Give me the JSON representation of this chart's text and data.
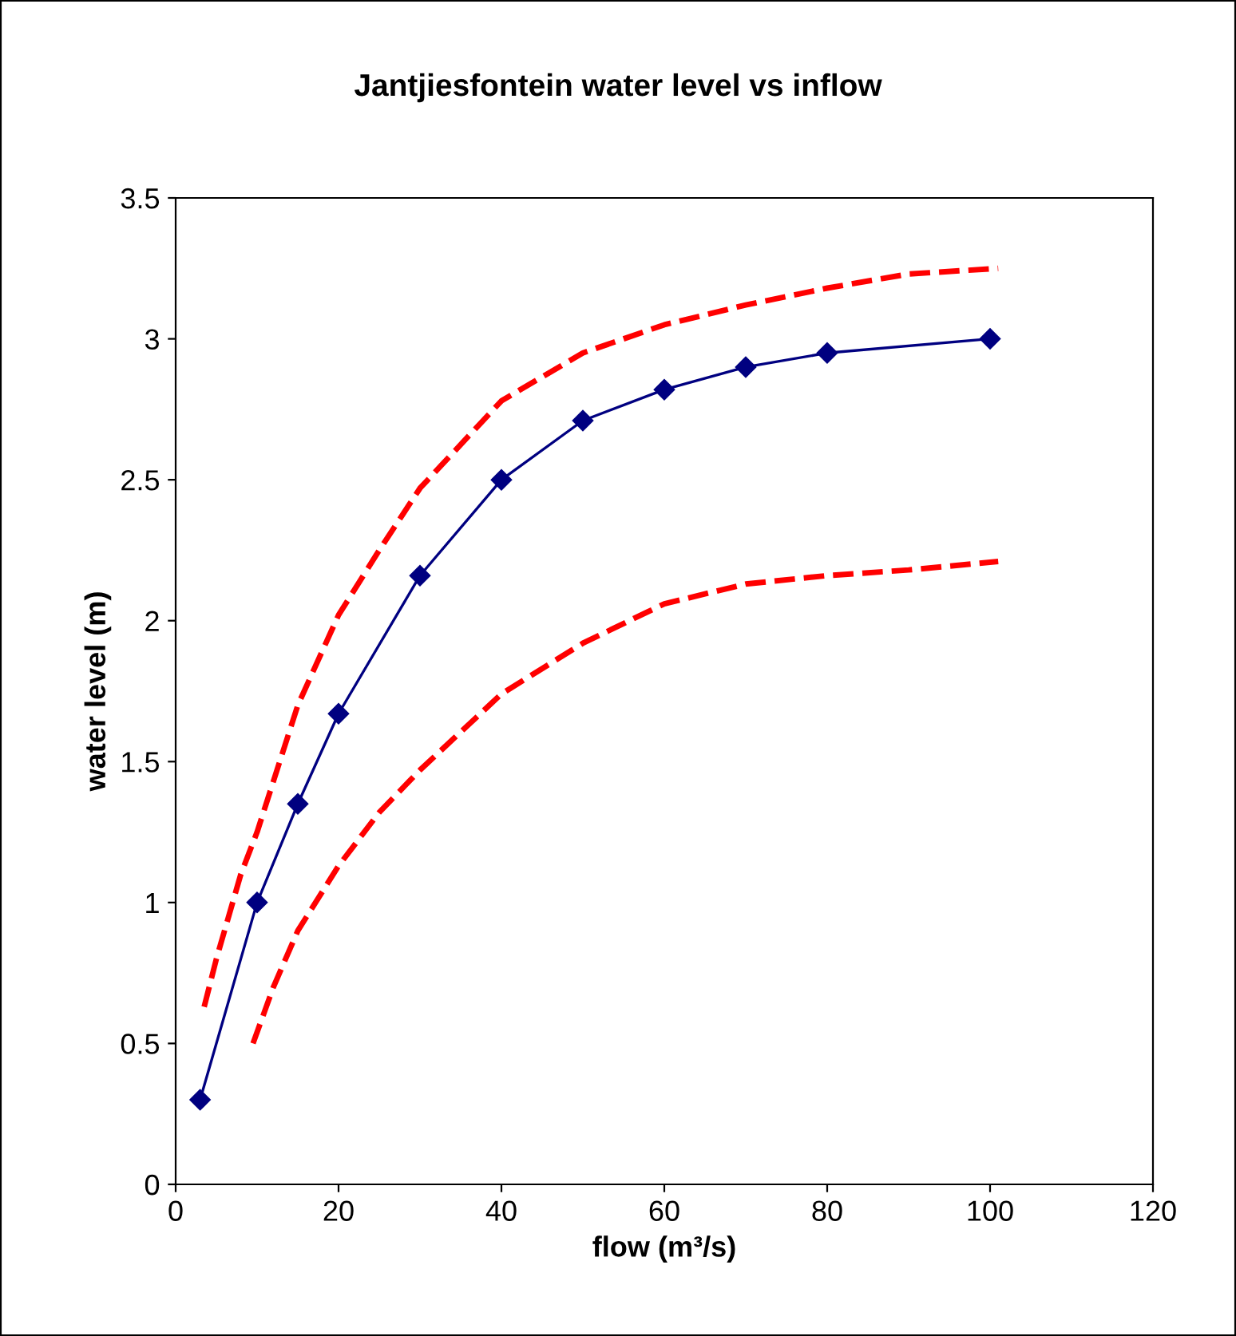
{
  "chart_data": {
    "type": "line",
    "title": "Jantjiesfontein water level vs inflow",
    "xlabel": "flow (m³/s)",
    "ylabel": "water level (m)",
    "xlim": [
      0,
      120
    ],
    "xticks": [
      0,
      20,
      40,
      60,
      80,
      100,
      120
    ],
    "ylim": [
      0,
      3.5
    ],
    "yticks": [
      0,
      0.5,
      1,
      1.5,
      2,
      2.5,
      3,
      3.5
    ],
    "grid": false,
    "legend": false,
    "series": [
      {
        "color": "#000080",
        "marker": "diamond",
        "line_style": "solid",
        "x": [
          3,
          10,
          15,
          20,
          30,
          40,
          50,
          60,
          70,
          80,
          100
        ],
        "values": [
          0.3,
          1.0,
          1.35,
          1.67,
          2.16,
          2.5,
          2.71,
          2.82,
          2.9,
          2.95,
          3.0
        ]
      },
      {
        "color": "#ff0000",
        "marker": "none",
        "line_style": "dashed",
        "x": [
          3.5,
          5,
          8,
          10,
          15,
          20,
          25,
          30,
          40,
          50,
          60,
          70,
          80,
          90,
          101
        ],
        "values": [
          0.63,
          0.8,
          1.1,
          1.25,
          1.7,
          2.02,
          2.25,
          2.47,
          2.78,
          2.95,
          3.05,
          3.12,
          3.18,
          3.23,
          3.25
        ]
      },
      {
        "color": "#ff0000",
        "marker": "none",
        "line_style": "dashed",
        "x": [
          9.5,
          12,
          15,
          20,
          25,
          30,
          40,
          50,
          60,
          70,
          80,
          90,
          101
        ],
        "values": [
          0.5,
          0.7,
          0.9,
          1.13,
          1.32,
          1.47,
          1.74,
          1.92,
          2.06,
          2.13,
          2.16,
          2.18,
          2.21
        ]
      }
    ]
  }
}
